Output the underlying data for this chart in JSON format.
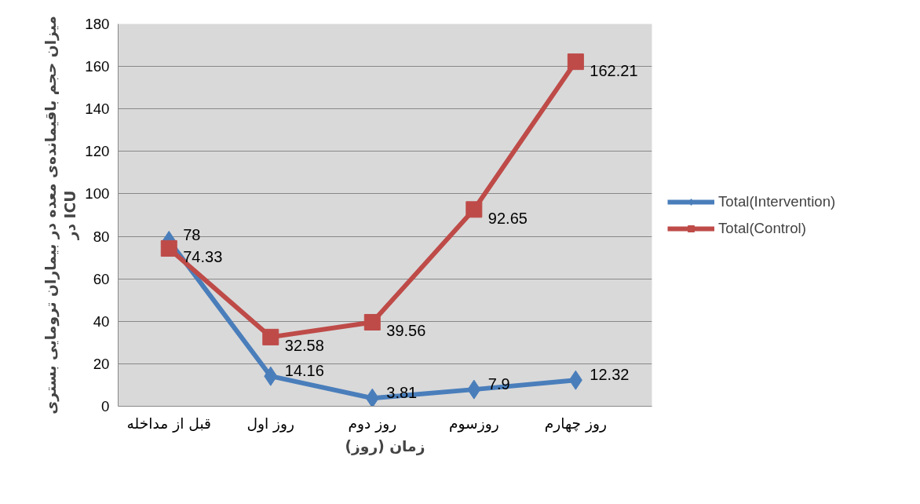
{
  "chart_data": {
    "type": "line",
    "xlabel": "زمان (روز)",
    "ylabel": "میزان حجم باقیمانده‌ی معده در بیماران ترومایی بستری\nدر ICU",
    "categories": [
      "قبل از مداخله",
      "روز اول",
      "روز دوم",
      "روزسوم",
      "روز چهارم"
    ],
    "series": [
      {
        "name": "Total(Intervention)",
        "color": "#4a7ebb",
        "marker": "diamond",
        "values": [
          78,
          14.16,
          3.81,
          7.9,
          12.32
        ]
      },
      {
        "name": "Total(Control)",
        "color": "#be4b48",
        "marker": "square",
        "values": [
          74.33,
          32.58,
          39.56,
          92.65,
          162.21
        ]
      }
    ],
    "ylim": [
      0,
      180
    ],
    "yticks": [
      0,
      20,
      40,
      60,
      80,
      100,
      120,
      140,
      160,
      180
    ],
    "grid": "y",
    "legend": "right",
    "data_labels": true
  }
}
